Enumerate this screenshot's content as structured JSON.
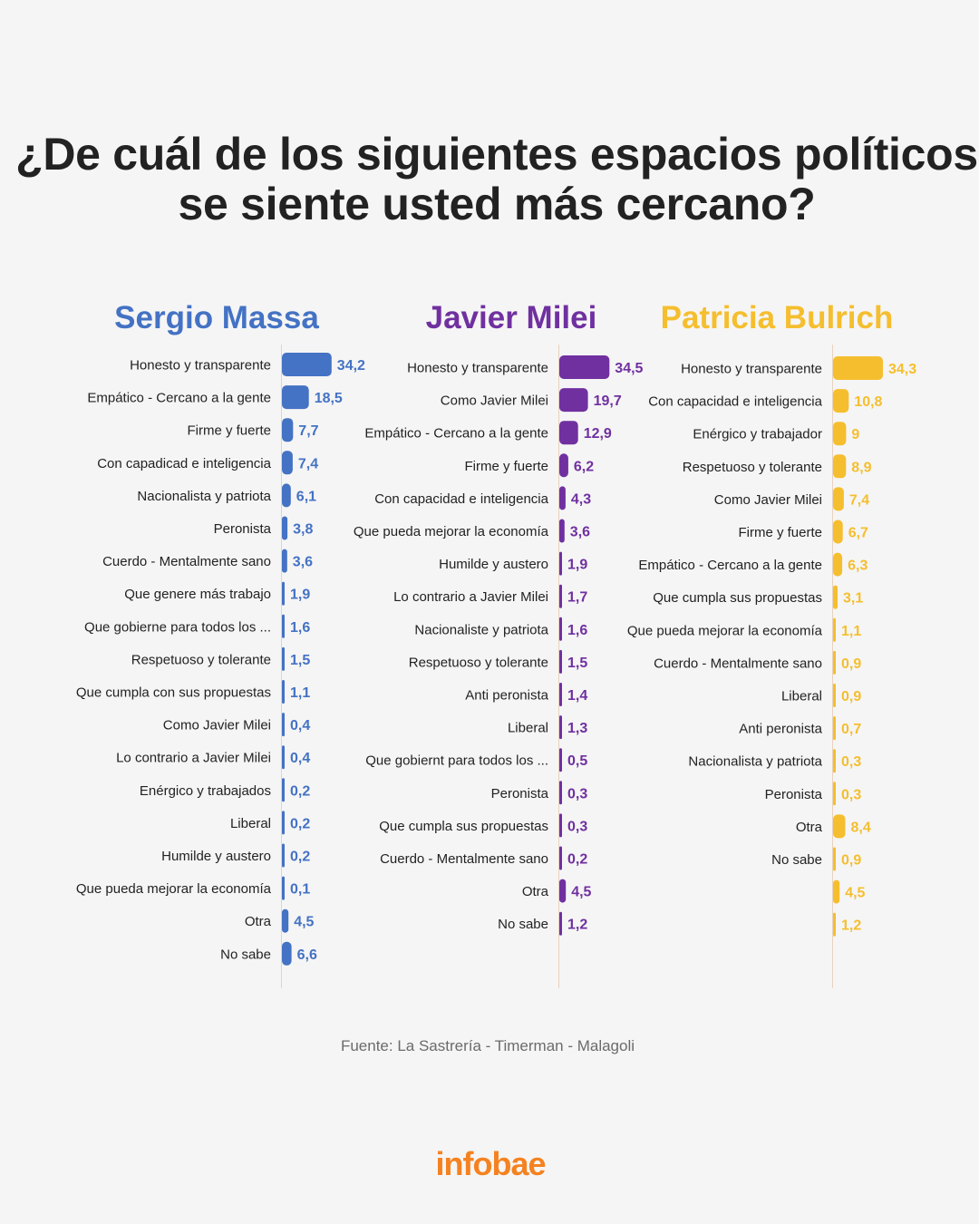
{
  "title": "¿De cuál de los siguientes espacios políticos se siente usted más cercano?",
  "source": "Fuente: La Sastrería - Timerman - Malagoli",
  "logo": "infobae",
  "colors": {
    "massa": "#4472c4",
    "milei": "#7030a0",
    "bulrich": "#f5be2e",
    "axis": "#e8d2bf",
    "label": "#222222"
  },
  "chart_data": [
    {
      "type": "bar",
      "title": "Sergio Massa",
      "color": "#4472c4",
      "categories": [
        "Honesto y transparente",
        "Empático - Cercano a la gente",
        "Firme y fuerte",
        "Con capadicad e inteligencia",
        "Nacionalista y patriota",
        "Peronista",
        "Cuerdo - Mentalmente sano",
        "Que genere más trabajo",
        "Que gobierne para todos los ...",
        "Respetuoso y tolerante",
        "Que cumpla con sus propuestas",
        "Como Javier Milei",
        "Lo contrario a Javier Milei",
        "Enérgico y trabajados",
        "Liberal",
        "Humilde y austero",
        "Que pueda mejorar la economía",
        "Otra",
        "No sabe"
      ],
      "values": [
        34.2,
        18.5,
        7.7,
        7.4,
        6.1,
        3.8,
        3.6,
        1.9,
        1.6,
        1.5,
        1.1,
        0.4,
        0.4,
        0.2,
        0.2,
        0.2,
        0.1,
        4.5,
        6.6
      ],
      "value_labels": [
        "34,2",
        "18,5",
        "7,7",
        "7,4",
        "6,1",
        "3,8",
        "3,6",
        "1,9",
        "1,6",
        "1,5",
        "1,1",
        "0,4",
        "0,4",
        "0,2",
        "0,2",
        "0,2",
        "0,1",
        "4,5",
        "6,6"
      ]
    },
    {
      "type": "bar",
      "title": "Javier Milei",
      "color": "#7030a0",
      "categories": [
        "Honesto y transparente",
        "Como Javier Milei",
        "Empático - Cercano a la gente",
        "Firme y fuerte",
        "Con capacidad e inteligencia",
        "Que pueda mejorar la economía",
        "Humilde y austero",
        "Lo contrario a Javier Milei",
        "Nacionaliste y patriota",
        "Respetuoso y tolerante",
        "Anti peronista",
        "Liberal",
        "Que gobiernt para todos los ...",
        "Peronista",
        "Que cumpla sus propuestas",
        "Cuerdo - Mentalmente sano",
        "Otra",
        "No sabe"
      ],
      "values": [
        34.5,
        19.7,
        12.9,
        6.2,
        4.3,
        3.6,
        1.9,
        1.7,
        1.6,
        1.5,
        1.4,
        1.3,
        0.5,
        0.3,
        0.3,
        0.2,
        4.5,
        1.2
      ],
      "value_labels": [
        "34,5",
        "19,7",
        "12,9",
        "6,2",
        "4,3",
        "3,6",
        "1,9",
        "1,7",
        "1,6",
        "1,5",
        "1,4",
        "1,3",
        "0,5",
        "0,3",
        "0,3",
        "0,2",
        "4,5",
        "1,2"
      ]
    },
    {
      "type": "bar",
      "title": "Patricia Bulrich",
      "color": "#f5be2e",
      "categories": [
        "Honesto y transparente",
        "Con capacidad e inteligencia",
        "Enérgico y trabajador",
        "Respetuoso y tolerante",
        "Como Javier Milei",
        "Firme y fuerte",
        "Empático - Cercano a la gente",
        "Que cumpla sus propuestas",
        "Que pueda mejorar la economía",
        "Cuerdo - Mentalmente sano",
        "Liberal",
        "Anti peronista",
        "Nacionalista y patriota",
        "Peronista",
        "Otra",
        "No sabe",
        "",
        ""
      ],
      "values": [
        34.3,
        10.8,
        9,
        8.9,
        7.4,
        6.7,
        6.3,
        3.1,
        1.1,
        0.9,
        0.9,
        0.7,
        0.3,
        0.3,
        8.4,
        0.9,
        4.5,
        1.2
      ],
      "value_labels": [
        "34,3",
        "10,8",
        "9",
        "8,9",
        "7,4",
        "6,7",
        "6,3",
        "3,1",
        "1,1",
        "0,9",
        "0,9",
        "0,7",
        "0,3",
        "0,3",
        "8,4",
        "0,9",
        "4,5",
        "1,2"
      ]
    }
  ]
}
